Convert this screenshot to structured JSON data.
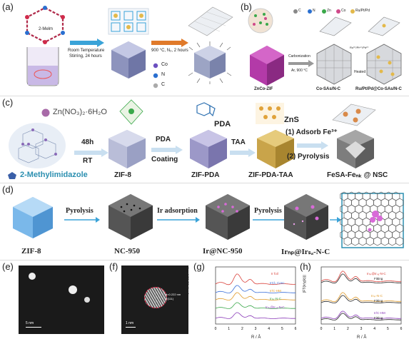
{
  "colors": {
    "cyan_arrow": "#3aa3d8",
    "light_arrow": "#c9dff0",
    "zif": "#b9bdd8",
    "zif_dark": "#8d93bd",
    "pink": "#b33aa8",
    "gold": "#c9a44a",
    "grey_cube": "#7d7d7d",
    "teal": "#2b8fb0"
  },
  "panel_a": {
    "label": "(a)",
    "linker": "2-Melm",
    "cond1_line1": "Room Temperature",
    "cond1_line2": "Stirring, 24 hours",
    "cond2": "900 °C, N₂, 2 hours",
    "legend": [
      "Co",
      "N",
      "C"
    ]
  },
  "panel_b": {
    "label": "(b)",
    "legend": [
      "C",
      "N",
      "Zn",
      "Co",
      "Ru/Pt/Pd"
    ],
    "carbonization": "Carbonization",
    "carbonization_temp": "Ar, 900 °C",
    "heated": "Heated",
    "mix": "Ru³⁺/Pt⁴⁺/Pd²⁺",
    "names": [
      "ZnCo-ZIF",
      "Co-SAs/N-C",
      "Ru/Pt/Pd@Co-SAs/N-C"
    ]
  },
  "panel_c": {
    "label": "(c)",
    "reagent": "Zn(NO₃)₂·6H₂O",
    "linker": "2-Methylimidazole",
    "step1_time": "48h",
    "step1_temp": "RT",
    "step2_line1": "PDA",
    "step2_line2": "Coating",
    "step3": "TAA",
    "step4a": "(1) Adsorb Fe³⁺",
    "step4b": "(2) Pyrolysis",
    "pda_label": "PDA",
    "zns_label": "ZnS",
    "names": [
      "ZIF-8",
      "ZIF-PDA",
      "ZIF-PDA-TAA",
      "FeSA-Feₙₖ @ NSC"
    ]
  },
  "panel_d": {
    "label": "(d)",
    "step1": "Pyrolysis",
    "step2": "Ir adsorption",
    "step3": "Pyrolysis",
    "names": [
      "ZIF-8",
      "NC-950",
      "Ir@NC-950",
      "Irₙₚ@Irₛₐ-N-C"
    ]
  },
  "panel_e": {
    "label": "(e)",
    "scale": "5 nm"
  },
  "panel_f": {
    "label": "(f)",
    "scale": "1 nm",
    "d_spacing": "d=0.222 nm",
    "plane": "Ir(111)"
  },
  "panel_g": {
    "label": "(g)",
    "ylabel": "|FT(k³χ(k))| (Å⁻⁴)",
    "xlabel": "R / Å",
    "xticks": [
      "0",
      "1",
      "2",
      "3",
      "4",
      "5",
      "6"
    ],
    "series": [
      {
        "name": "Ir foil",
        "color": "#d9413a"
      },
      {
        "name": "IrCl₃ Conc",
        "color": "#3a6fd9"
      },
      {
        "name": "Ir/C-HM",
        "color": "#e09a2a"
      },
      {
        "name": "Irₙₚ-N-C",
        "color": "#3aa84a"
      },
      {
        "name": "Irₙₚ@Irₛₐ-N-C",
        "color": "#8a3ab8"
      }
    ]
  },
  "panel_h": {
    "label": "(h)",
    "ylabel": "|FT(k³χ(k))|",
    "xlabel": "R / Å",
    "xticks": [
      "0",
      "1",
      "2",
      "3",
      "4",
      "5",
      "6"
    ],
    "series": [
      {
        "name": "Irₙₚ@Irₛₐ-N-C",
        "color": "#d9413a"
      },
      {
        "name": "Fitting",
        "color": "#222222"
      },
      {
        "name": "Irₙₚ-N-C",
        "color": "#e09a2a"
      },
      {
        "name": "Fitting",
        "color": "#222222"
      },
      {
        "name": "Ir/C-HM",
        "color": "#8a3ab8"
      },
      {
        "name": "Fitting",
        "color": "#222222"
      }
    ]
  }
}
